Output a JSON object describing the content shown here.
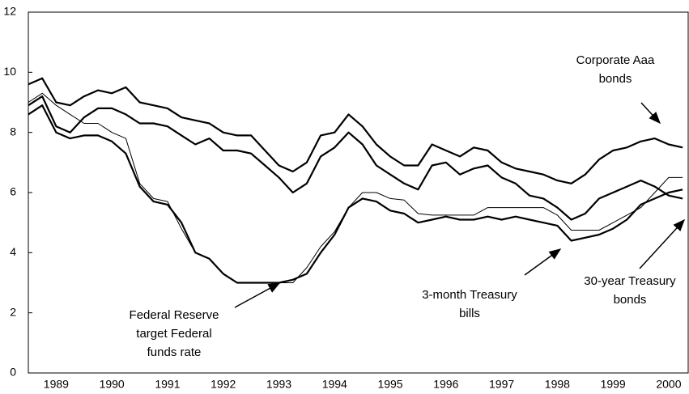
{
  "chart_data": {
    "type": "line",
    "x": [
      1989.0,
      1989.25,
      1989.5,
      1989.75,
      1990.0,
      1990.25,
      1990.5,
      1990.75,
      1991.0,
      1991.25,
      1991.5,
      1991.75,
      1992.0,
      1992.25,
      1992.5,
      1992.75,
      1993.0,
      1993.25,
      1993.5,
      1993.75,
      1994.0,
      1994.25,
      1994.5,
      1994.75,
      1995.0,
      1995.25,
      1995.5,
      1995.75,
      1996.0,
      1996.25,
      1996.5,
      1996.75,
      1997.0,
      1997.25,
      1997.5,
      1997.75,
      1998.0,
      1998.25,
      1998.5,
      1998.75,
      1999.0,
      1999.25,
      1999.5,
      1999.75,
      2000.0,
      2000.25,
      2000.5,
      2000.75
    ],
    "series": [
      {
        "label_lines": [
          "Corporate Aaa",
          "bonds"
        ],
        "color": "#000000",
        "line_width": 2.2,
        "values": [
          9.6,
          9.8,
          9.0,
          8.9,
          9.2,
          9.4,
          9.3,
          9.5,
          9.0,
          8.9,
          8.8,
          8.5,
          8.4,
          8.3,
          8.0,
          7.9,
          7.9,
          7.4,
          6.9,
          6.7,
          7.0,
          7.9,
          8.0,
          8.6,
          8.2,
          7.6,
          7.2,
          6.9,
          6.9,
          7.6,
          7.4,
          7.2,
          7.5,
          7.4,
          7.0,
          6.8,
          6.7,
          6.6,
          6.4,
          6.3,
          6.6,
          7.1,
          7.4,
          7.5,
          7.7,
          7.8,
          7.6,
          7.5
        ]
      },
      {
        "label_lines": [
          "30-year Treasury",
          "bonds"
        ],
        "color": "#000000",
        "line_width": 2.2,
        "values": [
          8.9,
          9.2,
          8.2,
          8.0,
          8.5,
          8.8,
          8.8,
          8.6,
          8.3,
          8.3,
          8.2,
          7.9,
          7.6,
          7.8,
          7.4,
          7.4,
          7.3,
          6.9,
          6.5,
          6.0,
          6.3,
          7.2,
          7.5,
          8.0,
          7.6,
          6.9,
          6.6,
          6.3,
          6.1,
          6.9,
          7.0,
          6.6,
          6.8,
          6.9,
          6.5,
          6.3,
          5.9,
          5.8,
          5.5,
          5.1,
          5.3,
          5.8,
          6.0,
          6.2,
          6.4,
          6.2,
          5.9,
          5.8
        ]
      },
      {
        "label_lines": [
          "3-month Treasury",
          "bills"
        ],
        "color": "#000000",
        "line_width": 2.2,
        "values": [
          8.6,
          8.9,
          8.0,
          7.8,
          7.9,
          7.9,
          7.7,
          7.3,
          6.2,
          5.7,
          5.6,
          5.0,
          4.0,
          3.8,
          3.3,
          3.0,
          3.0,
          3.0,
          3.0,
          3.1,
          3.3,
          4.0,
          4.6,
          5.5,
          5.8,
          5.7,
          5.4,
          5.3,
          5.0,
          5.1,
          5.2,
          5.1,
          5.1,
          5.2,
          5.1,
          5.2,
          5.1,
          5.0,
          4.9,
          4.4,
          4.5,
          4.6,
          4.8,
          5.1,
          5.6,
          5.8,
          6.0,
          6.1
        ]
      },
      {
        "label_lines": [
          "Federal Reserve",
          "target Federal",
          "funds rate"
        ],
        "color": "#000000",
        "line_width": 1,
        "values": [
          9.0,
          9.3,
          8.9,
          8.6,
          8.3,
          8.3,
          8.0,
          7.8,
          6.3,
          5.8,
          5.7,
          4.8,
          4.0,
          3.8,
          3.3,
          3.0,
          3.0,
          3.0,
          3.0,
          3.0,
          3.5,
          4.2,
          4.7,
          5.5,
          6.0,
          6.0,
          5.8,
          5.75,
          5.3,
          5.25,
          5.25,
          5.25,
          5.25,
          5.5,
          5.5,
          5.5,
          5.5,
          5.5,
          5.25,
          4.75,
          4.75,
          4.75,
          5.0,
          5.25,
          5.5,
          6.0,
          6.5,
          6.5
        ]
      }
    ],
    "xlim": [
      1989.0,
      2000.85
    ],
    "xticks": [
      {
        "value": 1989.5,
        "label": "1989"
      },
      {
        "value": 1990.5,
        "label": "1990"
      },
      {
        "value": 1991.5,
        "label": "1991"
      },
      {
        "value": 1992.5,
        "label": "1992"
      },
      {
        "value": 1993.5,
        "label": "1993"
      },
      {
        "value": 1994.5,
        "label": "1994"
      },
      {
        "value": 1995.5,
        "label": "1995"
      },
      {
        "value": 1996.5,
        "label": "1996"
      },
      {
        "value": 1997.5,
        "label": "1997"
      },
      {
        "value": 1998.5,
        "label": "1998"
      },
      {
        "value": 1999.5,
        "label": "1999"
      },
      {
        "value": 2000.5,
        "label": "2000"
      }
    ],
    "ylim": [
      0,
      12
    ],
    "yticks": [
      0,
      2,
      4,
      6,
      8,
      10,
      12
    ],
    "grid": false
  }
}
